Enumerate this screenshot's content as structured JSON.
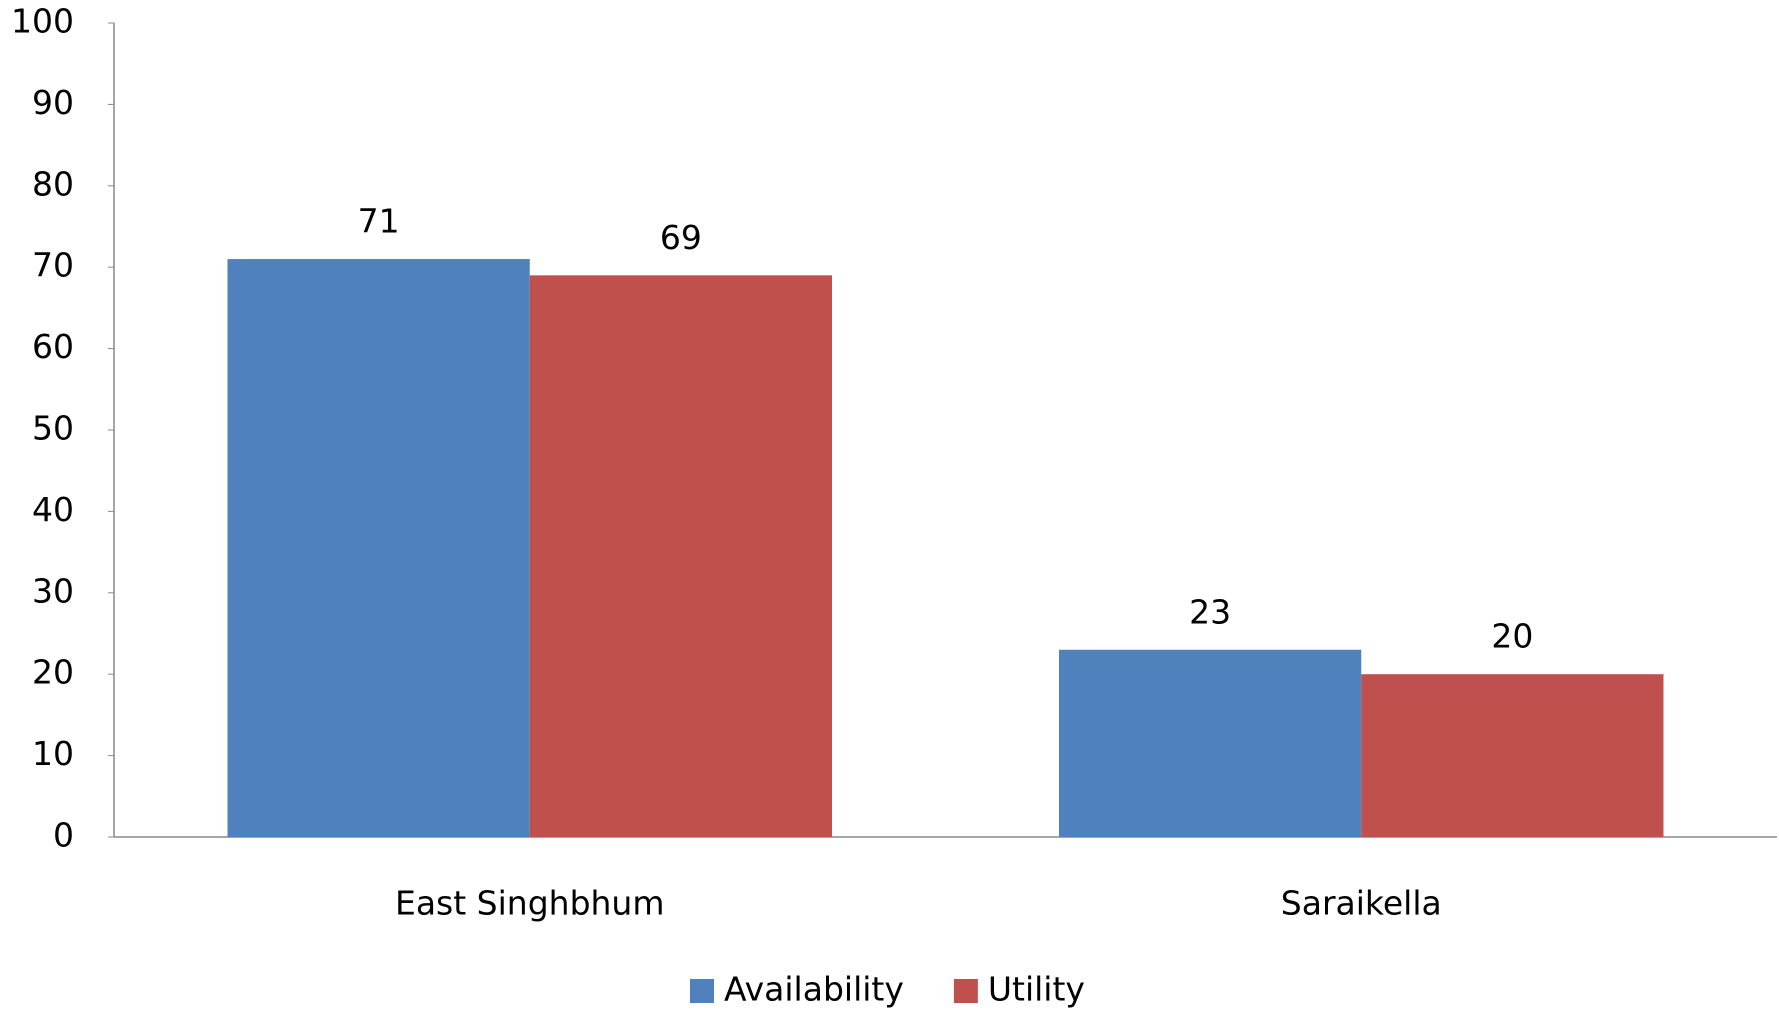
{
  "chart_data": {
    "type": "bar",
    "categories": [
      "East Singhbhum",
      "Saraikella"
    ],
    "series": [
      {
        "name": "Availability",
        "color": "#4f81bd",
        "values": [
          71,
          23
        ]
      },
      {
        "name": "Utility",
        "color": "#c0504d",
        "values": [
          69,
          20
        ]
      }
    ],
    "ylim": [
      0,
      100
    ],
    "yticks": [
      0,
      10,
      20,
      30,
      40,
      50,
      60,
      70,
      80,
      90,
      100
    ],
    "grid": false,
    "legend": "bottom"
  }
}
